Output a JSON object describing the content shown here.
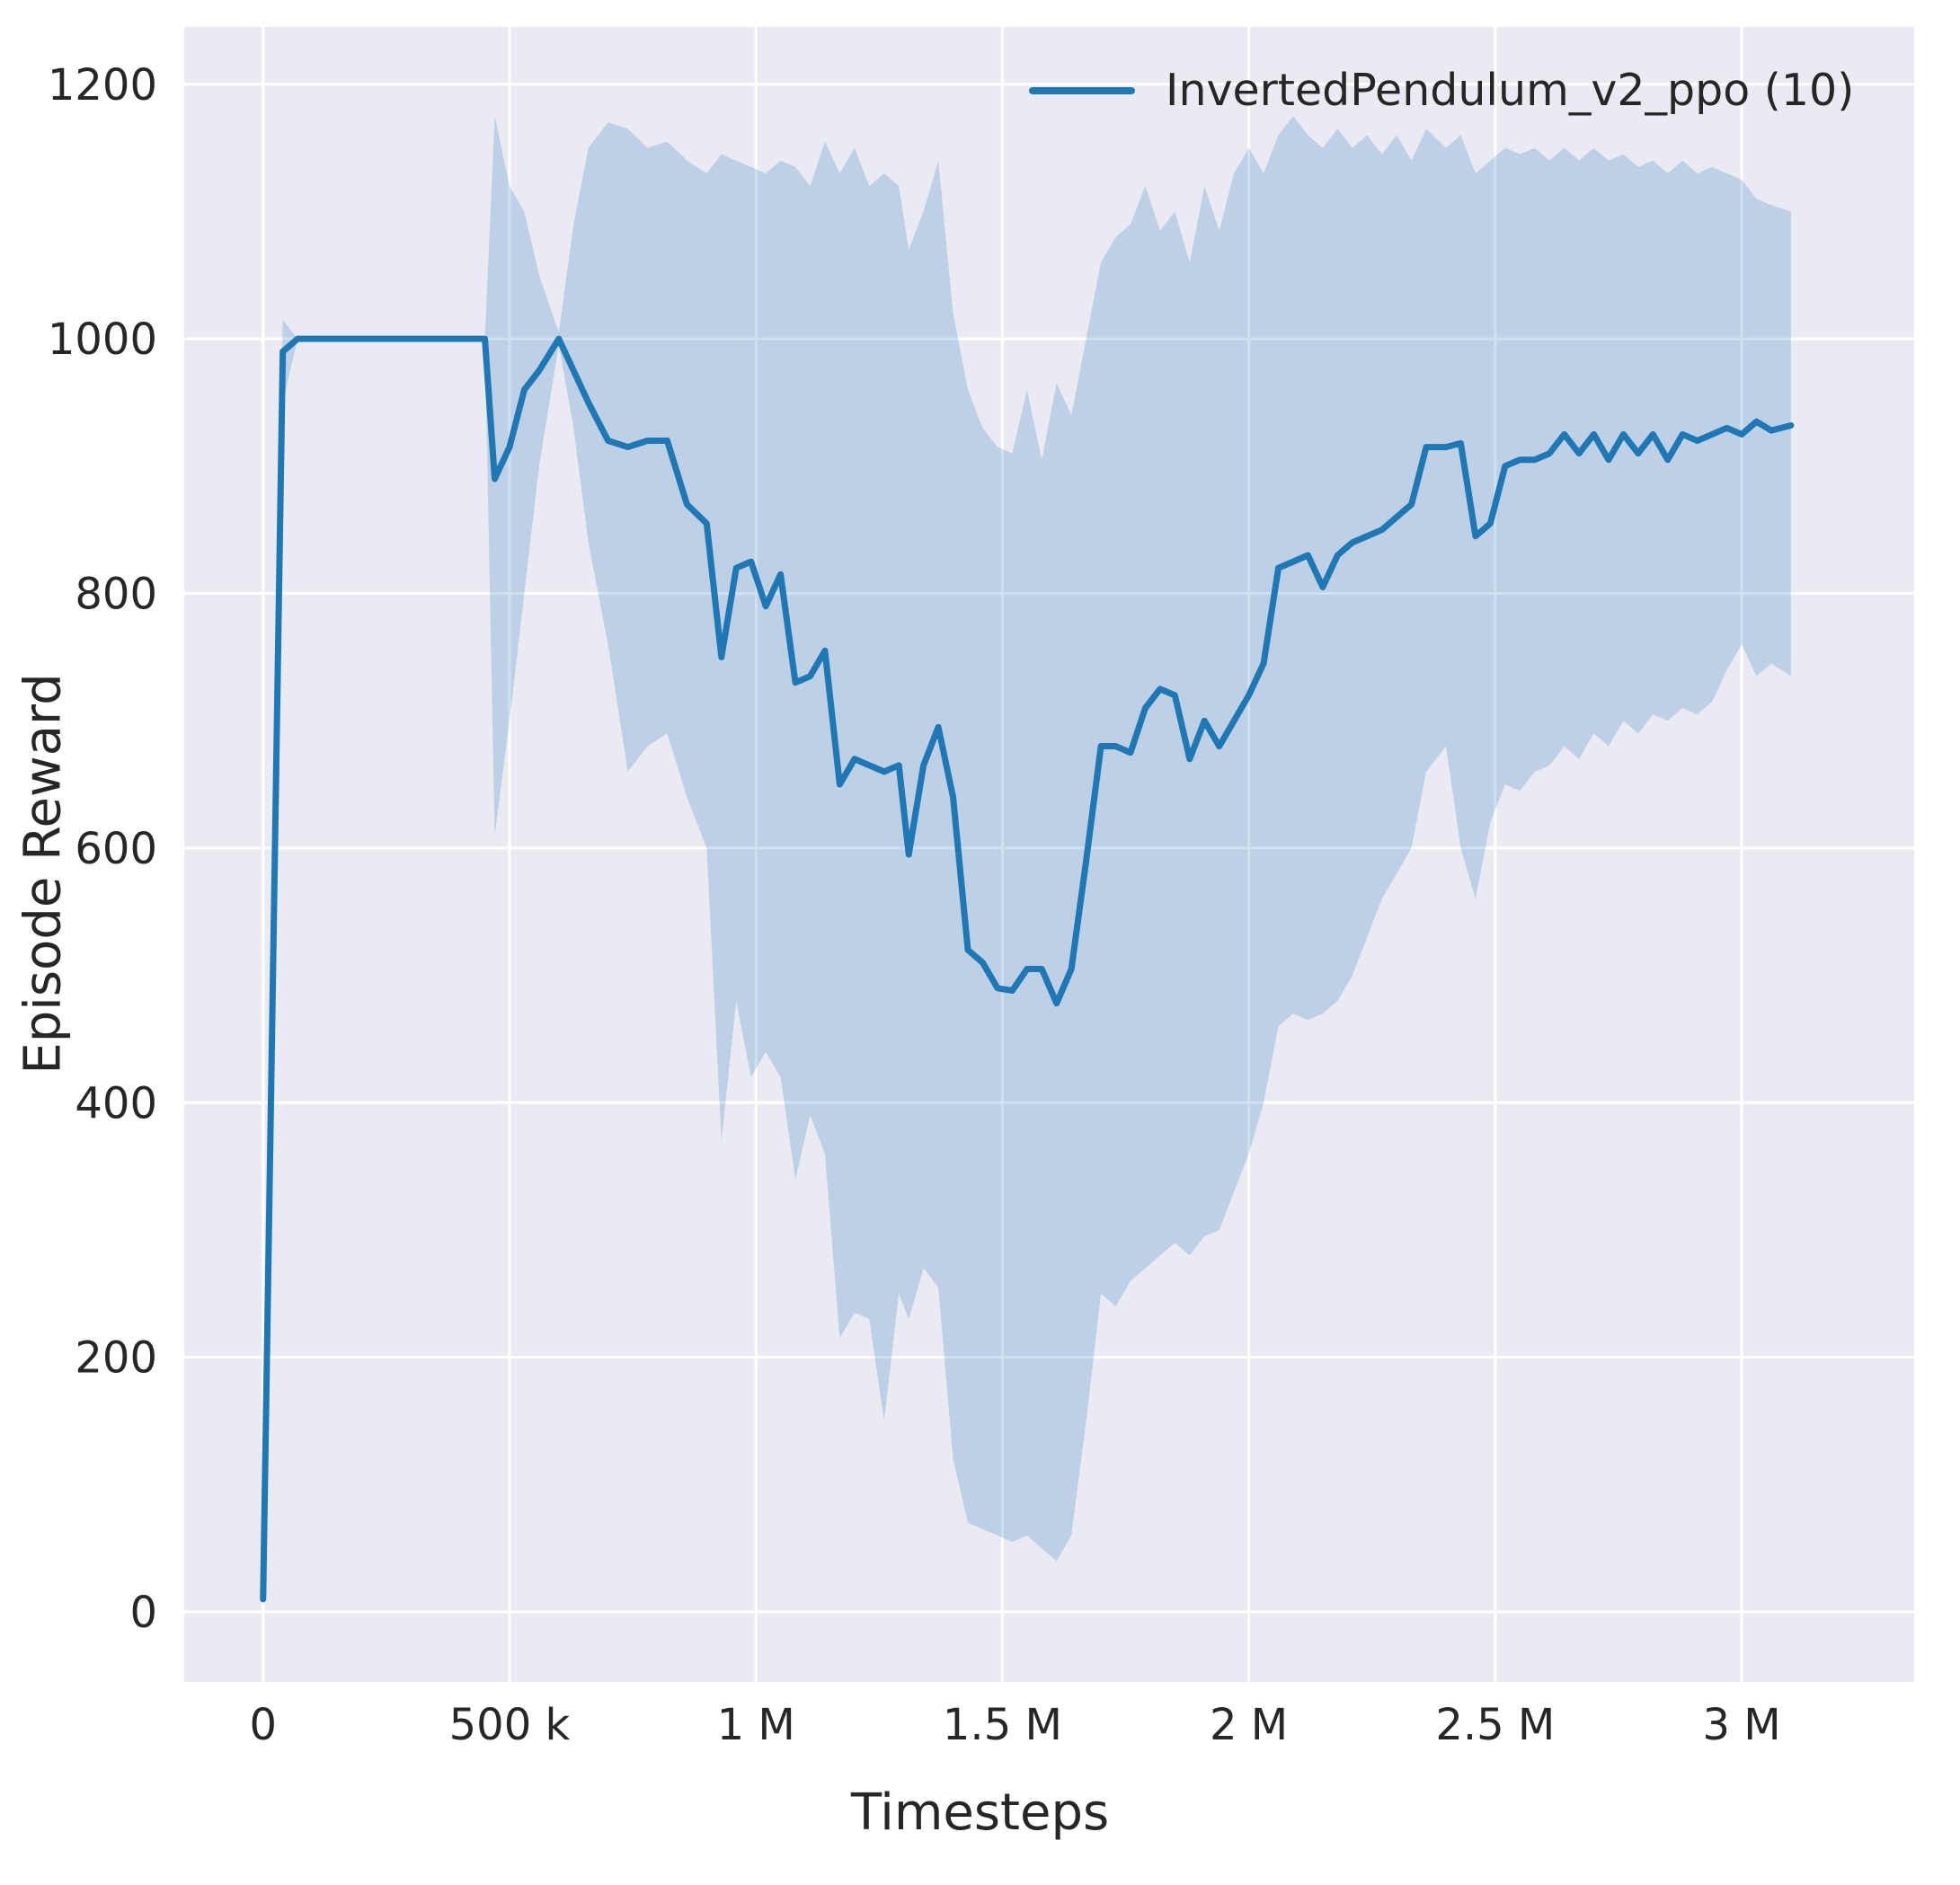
{
  "figure": {
    "background": "#ffffff",
    "plot_background": "#eaeaf2",
    "grid_color": "#ffffff",
    "text_color": "#262626"
  },
  "chart_data": {
    "type": "line",
    "title": "",
    "xlabel": "Timesteps",
    "ylabel": "Episode Reward",
    "grid": true,
    "legend_position": "upper right",
    "legend": [
      {
        "label": "InvertedPendulum_v2_ppo (10)",
        "color": "#1f77b4"
      }
    ],
    "xlim": [
      -160000,
      3350000
    ],
    "ylim": [
      -55,
      1245
    ],
    "xticks": [
      {
        "value": 0,
        "label": "0"
      },
      {
        "value": 500000,
        "label": "500 k"
      },
      {
        "value": 1000000,
        "label": "1 M"
      },
      {
        "value": 1500000,
        "label": "1.5 M"
      },
      {
        "value": 2000000,
        "label": "2 M"
      },
      {
        "value": 2500000,
        "label": "2.5 M"
      },
      {
        "value": 3000000,
        "label": "3 M"
      }
    ],
    "yticks": [
      {
        "value": 0,
        "label": "0"
      },
      {
        "value": 200,
        "label": "200"
      },
      {
        "value": 400,
        "label": "400"
      },
      {
        "value": 600,
        "label": "600"
      },
      {
        "value": 800,
        "label": "800"
      },
      {
        "value": 1000,
        "label": "1000"
      },
      {
        "value": 1200,
        "label": "1200"
      }
    ],
    "series": [
      {
        "name": "InvertedPendulum_v2_ppo (10)",
        "color": "#1f77b4",
        "band_color": "#1f77b4",
        "band_opacity": 0.22,
        "line_width": 7,
        "x": [
          0,
          40000,
          70000,
          420000,
          450000,
          470000,
          500000,
          530000,
          560000,
          600000,
          630000,
          660000,
          700000,
          740000,
          780000,
          820000,
          860000,
          900000,
          930000,
          960000,
          990000,
          1020000,
          1050000,
          1080000,
          1110000,
          1140000,
          1170000,
          1200000,
          1230000,
          1260000,
          1290000,
          1310000,
          1340000,
          1370000,
          1400000,
          1430000,
          1460000,
          1490000,
          1520000,
          1550000,
          1580000,
          1610000,
          1640000,
          1670000,
          1700000,
          1730000,
          1760000,
          1790000,
          1820000,
          1850000,
          1880000,
          1910000,
          1940000,
          1970000,
          2000000,
          2030000,
          2060000,
          2090000,
          2120000,
          2150000,
          2180000,
          2210000,
          2240000,
          2270000,
          2300000,
          2330000,
          2360000,
          2400000,
          2430000,
          2460000,
          2490000,
          2520000,
          2550000,
          2580000,
          2610000,
          2640000,
          2670000,
          2700000,
          2730000,
          2760000,
          2790000,
          2820000,
          2850000,
          2880000,
          2910000,
          2940000,
          2970000,
          3000000,
          3030000,
          3060000,
          3100000
        ],
        "y": [
          10,
          990,
          1000,
          1000,
          1000,
          890,
          915,
          960,
          975,
          1000,
          975,
          950,
          920,
          915,
          920,
          920,
          870,
          855,
          750,
          820,
          825,
          790,
          815,
          730,
          735,
          755,
          650,
          670,
          665,
          660,
          665,
          595,
          665,
          695,
          640,
          520,
          510,
          490,
          488,
          505,
          505,
          478,
          505,
          590,
          680,
          680,
          675,
          710,
          725,
          720,
          670,
          700,
          680,
          700,
          720,
          745,
          820,
          825,
          830,
          805,
          830,
          840,
          845,
          850,
          860,
          870,
          915,
          915,
          918,
          845,
          855,
          900,
          905,
          905,
          910,
          925,
          910,
          925,
          905,
          925,
          910,
          925,
          905,
          925,
          920,
          925,
          930,
          925,
          935,
          928,
          932
        ],
        "y_lo": [
          10,
          950,
          1000,
          1000,
          1000,
          610,
          700,
          800,
          900,
          995,
          930,
          840,
          760,
          660,
          680,
          690,
          640,
          600,
          370,
          480,
          420,
          440,
          420,
          340,
          390,
          360,
          215,
          235,
          230,
          150,
          250,
          230,
          270,
          255,
          120,
          70,
          65,
          60,
          55,
          60,
          50,
          40,
          60,
          150,
          250,
          240,
          260,
          270,
          280,
          290,
          280,
          295,
          300,
          330,
          360,
          400,
          460,
          470,
          465,
          470,
          480,
          500,
          530,
          560,
          580,
          600,
          660,
          680,
          600,
          560,
          620,
          650,
          645,
          660,
          665,
          680,
          670,
          690,
          680,
          700,
          690,
          705,
          700,
          710,
          705,
          715,
          740,
          760,
          735,
          745,
          735
        ],
        "y_hi": [
          10,
          1015,
          1000,
          1000,
          1000,
          1175,
          1120,
          1100,
          1050,
          1005,
          1090,
          1150,
          1170,
          1165,
          1150,
          1155,
          1140,
          1130,
          1145,
          1140,
          1135,
          1130,
          1140,
          1135,
          1120,
          1155,
          1130,
          1150,
          1120,
          1130,
          1120,
          1070,
          1100,
          1140,
          1020,
          960,
          930,
          915,
          910,
          960,
          905,
          965,
          940,
          1000,
          1060,
          1080,
          1090,
          1120,
          1085,
          1100,
          1060,
          1120,
          1085,
          1130,
          1150,
          1130,
          1160,
          1175,
          1160,
          1150,
          1165,
          1150,
          1160,
          1145,
          1160,
          1140,
          1165,
          1150,
          1160,
          1130,
          1140,
          1150,
          1145,
          1150,
          1140,
          1150,
          1140,
          1150,
          1140,
          1145,
          1135,
          1140,
          1130,
          1140,
          1130,
          1135,
          1130,
          1125,
          1110,
          1105,
          1100
        ]
      }
    ]
  }
}
